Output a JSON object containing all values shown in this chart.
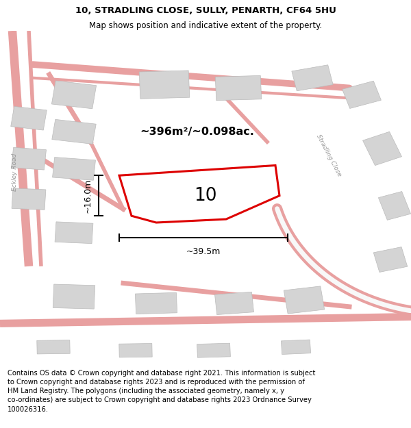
{
  "title": "10, STRADLING CLOSE, SULLY, PENARTH, CF64 5HU",
  "subtitle": "Map shows position and indicative extent of the property.",
  "footer": "Contains OS data © Crown copyright and database right 2021. This information is subject\nto Crown copyright and database rights 2023 and is reproduced with the permission of\nHM Land Registry. The polygons (including the associated geometry, namely x, y\nco-ordinates) are subject to Crown copyright and database rights 2023 Ordnance Survey\n100026316.",
  "map_bg": "#f8f8f8",
  "road_color": "#e8a0a0",
  "building_color": "#d4d4d4",
  "building_edge": "#bbbbbb",
  "plot_color": "#dd0000",
  "area_text": "~396m²/~0.098ac.",
  "label_number": "10",
  "dim_width": "~39.5m",
  "dim_height": "~16.0m",
  "road_label_left": "Eckley Road",
  "road_label_right": "Stradling Close",
  "title_fontsize": 9.5,
  "subtitle_fontsize": 8.5,
  "footer_fontsize": 7.2,
  "title_bold": true
}
